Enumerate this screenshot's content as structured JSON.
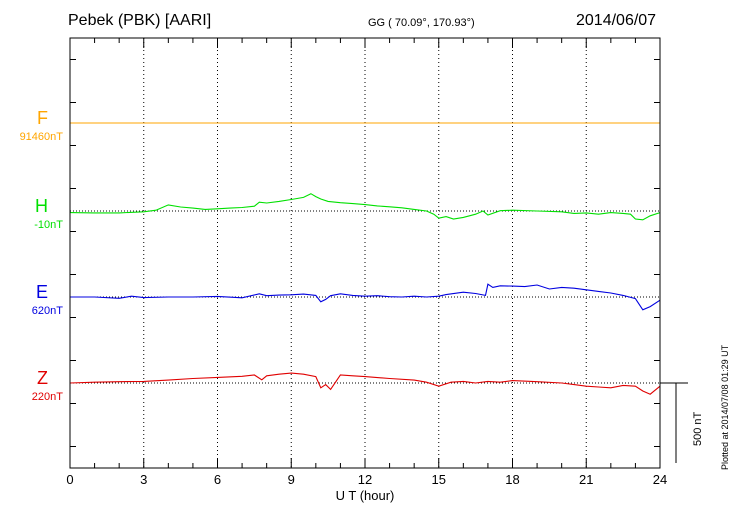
{
  "header": {
    "station": "Pebek (PBK)  [AARI]",
    "coords": "GG ( 70.09°, 170.93°)",
    "date": "2014/06/07"
  },
  "footer": {
    "plotted": "Plotted at 2014/07/08 01:29 UT",
    "scale_label": "500 nT"
  },
  "chart_data": {
    "type": "line",
    "title": "",
    "xlabel": "U T (hour)",
    "ylabel": "",
    "xlim": [
      0,
      24
    ],
    "x_ticks": [
      0,
      3,
      6,
      9,
      12,
      15,
      18,
      21,
      24
    ],
    "x_tick_labels": [
      "0",
      "3",
      "6",
      "9",
      "12",
      "15",
      "18",
      "21",
      "24"
    ],
    "grid": true,
    "scale_bar_nT": 500,
    "series": [
      {
        "name": "F",
        "baseline": "91460nT",
        "color": "#ffa500",
        "x": [
          0,
          24
        ],
        "y": [
          0,
          0
        ]
      },
      {
        "name": "H",
        "baseline": "-10nT",
        "color": "#00e000",
        "x": [
          0,
          1,
          2,
          3,
          3.5,
          4,
          4.5,
          5,
          5.5,
          6,
          6.5,
          7,
          7.5,
          7.7,
          8,
          8.5,
          9,
          9.5,
          9.8,
          10,
          10.2,
          10.5,
          11,
          11.5,
          12,
          12.5,
          13,
          13.5,
          14,
          14.5,
          14.8,
          15,
          15.3,
          15.6,
          16,
          16.5,
          16.8,
          17,
          17.5,
          18,
          19,
          20,
          20.5,
          21,
          21.5,
          22,
          22.5,
          22.8,
          23,
          23.3,
          23.6,
          24
        ],
        "y": [
          -10,
          -12,
          -12,
          -5,
          5,
          38,
          25,
          18,
          10,
          14,
          18,
          22,
          30,
          55,
          50,
          60,
          72,
          85,
          108,
          90,
          75,
          60,
          52,
          46,
          40,
          32,
          26,
          20,
          10,
          0,
          -20,
          -45,
          -35,
          -50,
          -40,
          -20,
          0,
          -25,
          2,
          5,
          0,
          -5,
          -15,
          -12,
          -20,
          -10,
          -15,
          -20,
          -50,
          -55,
          -30,
          -10
        ]
      },
      {
        "name": "E",
        "baseline": "620nT",
        "color": "#0000e0",
        "x": [
          0,
          1,
          2,
          2.5,
          3,
          4,
          5,
          6,
          7,
          7.7,
          8,
          8.5,
          9,
          9.5,
          10,
          10.2,
          10.4,
          10.6,
          11,
          11.5,
          12,
          12.5,
          13,
          13.5,
          14,
          14.5,
          15,
          15.3,
          16,
          16.5,
          16.9,
          17,
          17.2,
          17.5,
          18,
          18.5,
          19,
          19.5,
          20,
          20.5,
          21,
          21.5,
          22,
          22.5,
          23,
          23.3,
          23.6,
          24
        ],
        "y": [
          0,
          0,
          -8,
          5,
          -4,
          0,
          0,
          4,
          -5,
          20,
          8,
          12,
          14,
          18,
          10,
          -30,
          -15,
          8,
          20,
          10,
          5,
          8,
          2,
          0,
          5,
          0,
          5,
          15,
          30,
          22,
          10,
          80,
          60,
          70,
          68,
          65,
          75,
          50,
          60,
          55,
          45,
          35,
          25,
          10,
          -10,
          -80,
          -60,
          -20
        ]
      },
      {
        "name": "Z",
        "baseline": "220nT",
        "color": "#e00000",
        "x": [
          0,
          1,
          2,
          3,
          4,
          5,
          6,
          7,
          7.5,
          7.8,
          8,
          8.5,
          9,
          9.5,
          10,
          10.2,
          10.4,
          10.6,
          11,
          11.5,
          12,
          13,
          14,
          14.5,
          15,
          15.5,
          16,
          16.5,
          17,
          17.5,
          18,
          19,
          20,
          20.5,
          21,
          21.5,
          22,
          22.5,
          23,
          23.3,
          23.6,
          24
        ],
        "y": [
          0,
          5,
          8,
          10,
          18,
          28,
          35,
          42,
          50,
          20,
          45,
          55,
          62,
          55,
          40,
          -30,
          -10,
          -40,
          50,
          45,
          40,
          28,
          18,
          5,
          -20,
          5,
          10,
          0,
          10,
          5,
          15,
          8,
          0,
          -10,
          -20,
          -25,
          -30,
          -15,
          -20,
          -50,
          -70,
          -20
        ]
      }
    ]
  }
}
